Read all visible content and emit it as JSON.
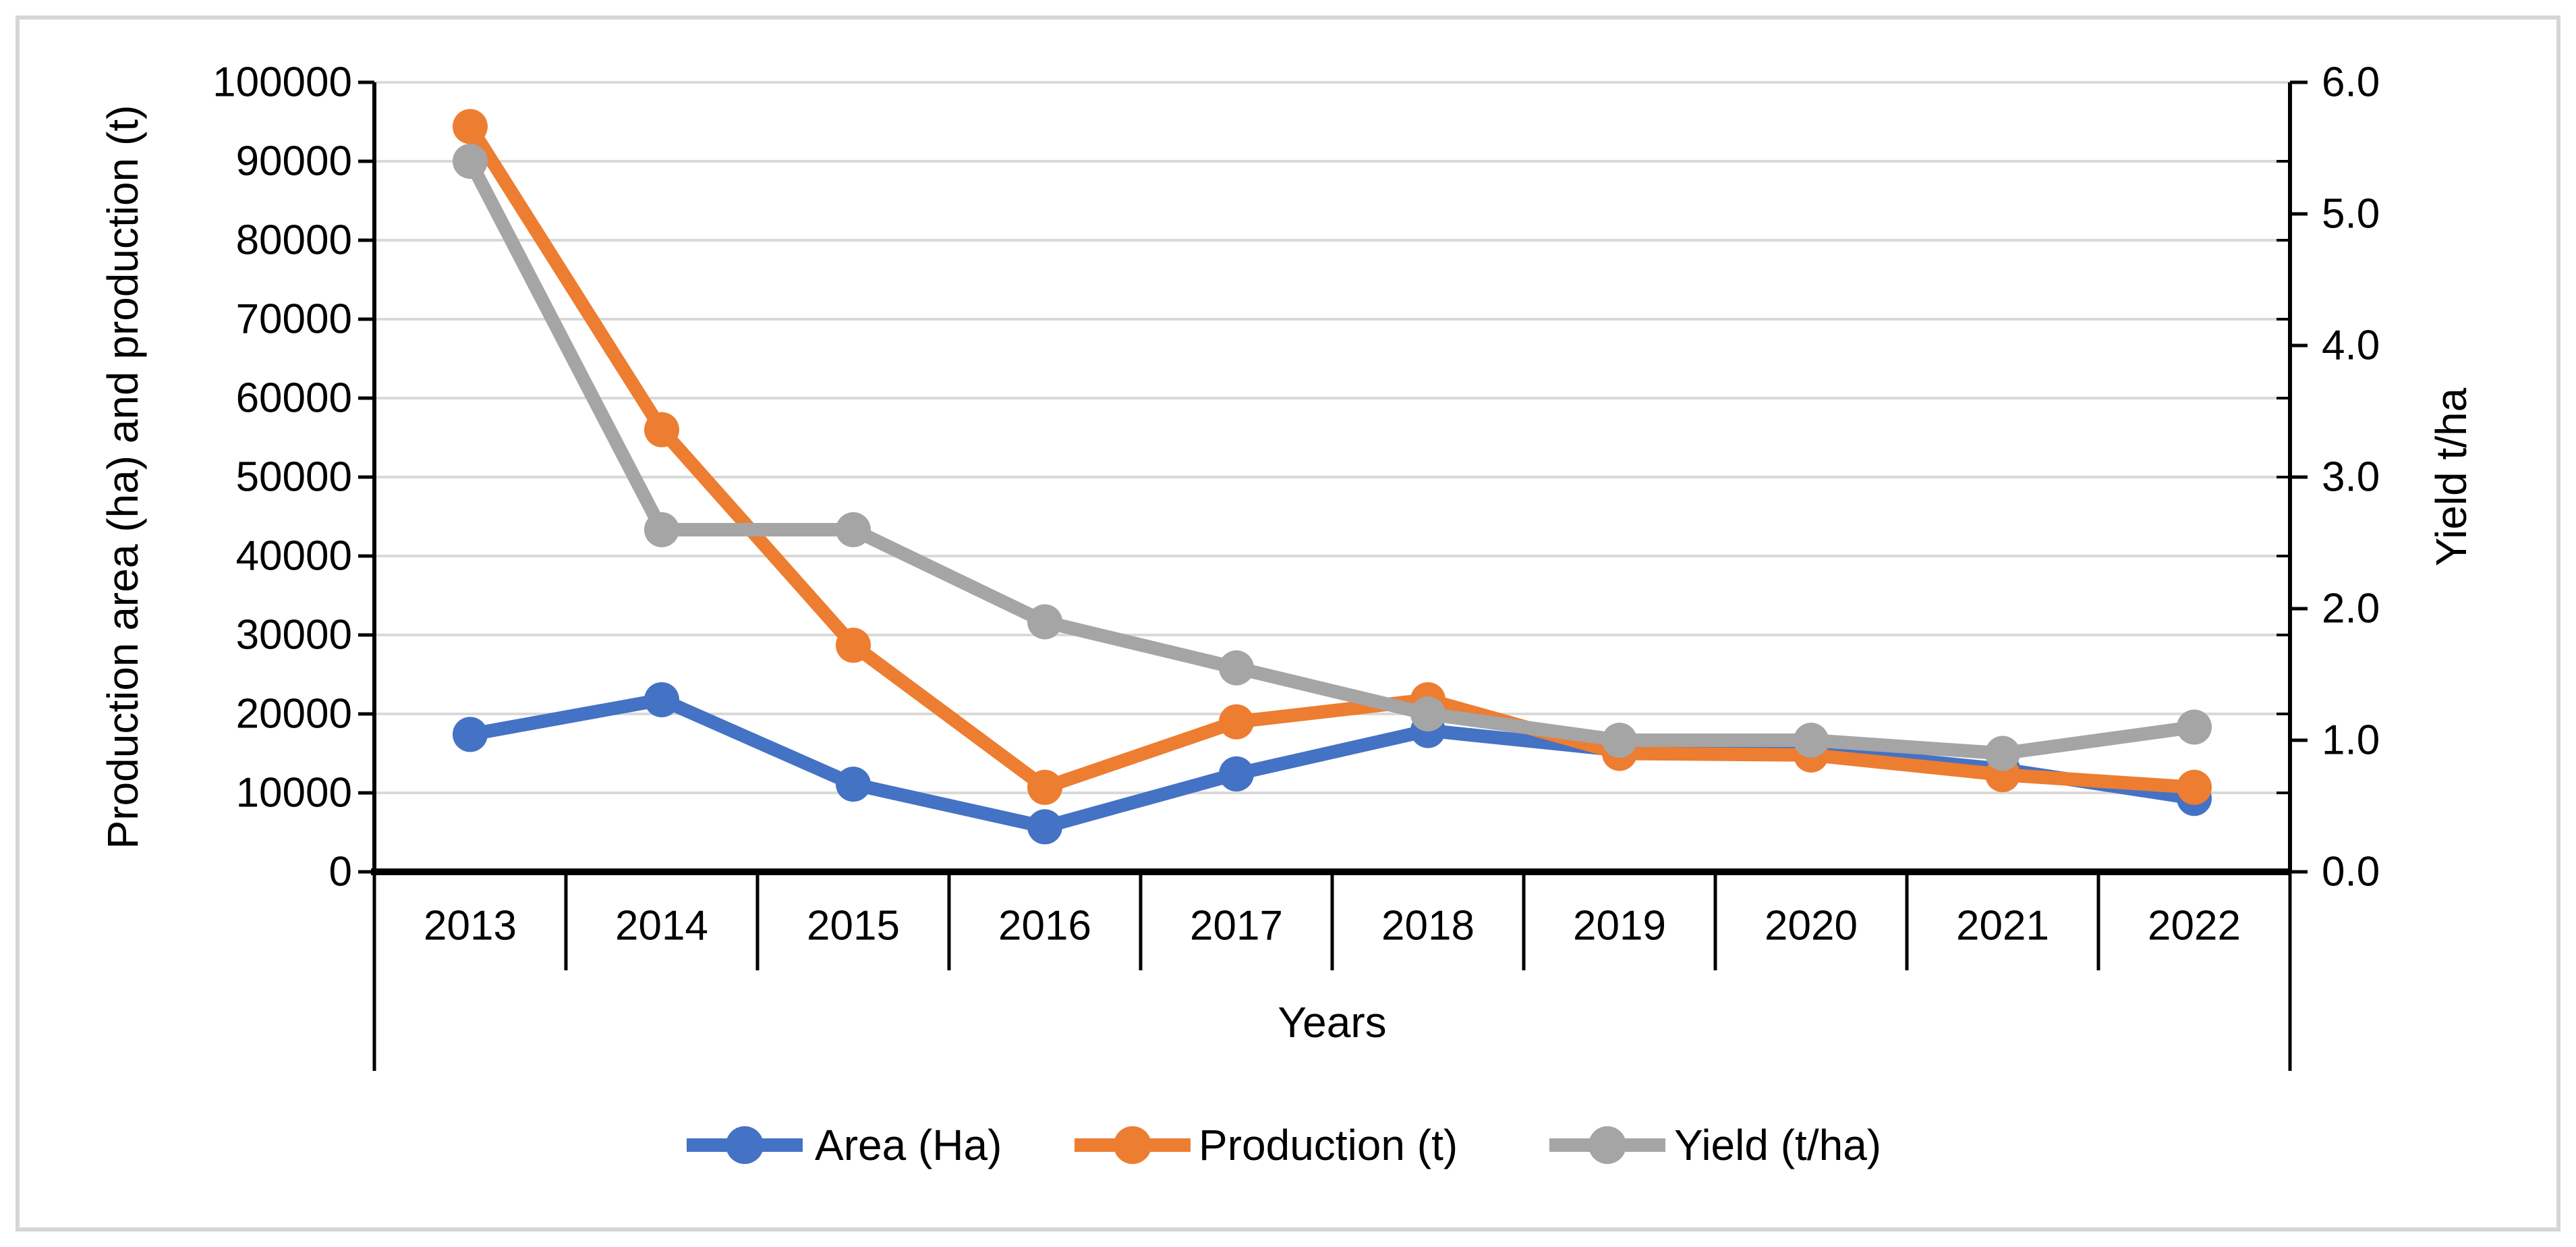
{
  "chart_data": {
    "type": "line",
    "title": "",
    "xlabel": "Years",
    "ylabel_left": "Production area (ha) and production (t)",
    "ylabel_right": "Yield t/ha",
    "categories": [
      "2013",
      "2014",
      "2015",
      "2016",
      "2017",
      "2018",
      "2019",
      "2020",
      "2021",
      "2022"
    ],
    "ylim_left": [
      0,
      100000
    ],
    "ytick_step_left": 10000,
    "ylim_right": [
      0,
      6
    ],
    "ytick_labels_right": [
      "0.0",
      "1.0",
      "2.0",
      "3.0",
      "4.0",
      "5.0",
      "6.0"
    ],
    "grid": true,
    "legend_position": "bottom",
    "series": [
      {
        "name": "Area (Ha)",
        "axis": "left",
        "color": "#4472C4",
        "marker": "circle",
        "values": [
          17400,
          21800,
          11100,
          5700,
          12400,
          17900,
          15400,
          15400,
          13000,
          9300
        ]
      },
      {
        "name": "Production (t)",
        "axis": "left",
        "color": "#ED7D31",
        "marker": "circle",
        "values": [
          94400,
          56000,
          28700,
          10700,
          19000,
          21800,
          15000,
          14800,
          12300,
          10700
        ]
      },
      {
        "name": "Yield (t/ha)",
        "axis": "right",
        "color": "#A5A5A5",
        "marker": "circle",
        "values": [
          5.4,
          2.6,
          2.6,
          1.9,
          1.55,
          1.2,
          1.0,
          1.0,
          0.9,
          1.1
        ]
      }
    ],
    "colors": {
      "gridline": "#D9D9D9",
      "axis_line": "#000000",
      "text": "#000000",
      "frame_border": "#D6D6D6",
      "background": "#FFFFFF"
    }
  }
}
